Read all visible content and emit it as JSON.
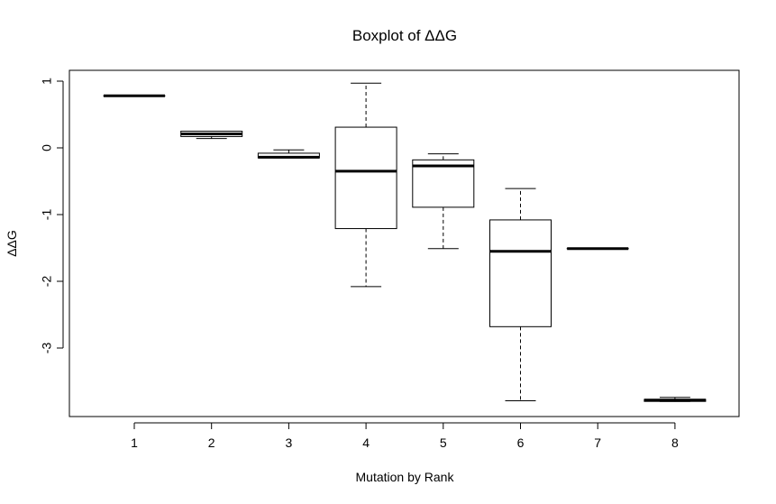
{
  "chart_data": {
    "type": "boxplot",
    "title": "Boxplot of ΔΔG",
    "xlabel": "Mutation by Rank",
    "ylabel": "ΔΔG",
    "categories": [
      "1",
      "2",
      "3",
      "4",
      "5",
      "6",
      "7",
      "8"
    ],
    "y_ticks": [
      1,
      0,
      -1,
      -2,
      -3
    ],
    "y_tick_labels": [
      "1",
      "0",
      "-1",
      "-2",
      "-3"
    ],
    "ylim": [
      -4.0,
      1.18
    ],
    "boxes": [
      {
        "category": "1",
        "min": 0.78,
        "q1": 0.78,
        "median": 0.78,
        "q3": 0.78,
        "max": 0.78
      },
      {
        "category": "2",
        "min": 0.14,
        "q1": 0.17,
        "median": 0.21,
        "q3": 0.25,
        "max": 0.25
      },
      {
        "category": "3",
        "min": -0.15,
        "q1": -0.15,
        "median": -0.14,
        "q3": -0.08,
        "max": -0.03
      },
      {
        "category": "4",
        "min": -2.08,
        "q1": -1.21,
        "median": -0.35,
        "q3": 0.31,
        "max": 0.97
      },
      {
        "category": "5",
        "min": -1.51,
        "q1": -0.89,
        "median": -0.27,
        "q3": -0.18,
        "max": -0.09
      },
      {
        "category": "6",
        "min": -3.79,
        "q1": -2.68,
        "median": -1.55,
        "q3": -1.08,
        "max": -0.61
      },
      {
        "category": "7",
        "min": -1.52,
        "q1": -1.51,
        "median": -1.51,
        "q3": -1.51,
        "max": -1.51
      },
      {
        "category": "8",
        "min": -3.8,
        "q1": -3.8,
        "median": -3.78,
        "q3": -3.77,
        "max": -3.74
      }
    ],
    "grid": false,
    "legend": "none",
    "colors": {
      "box_fill": "#ffffff",
      "stroke": "#000000"
    }
  }
}
